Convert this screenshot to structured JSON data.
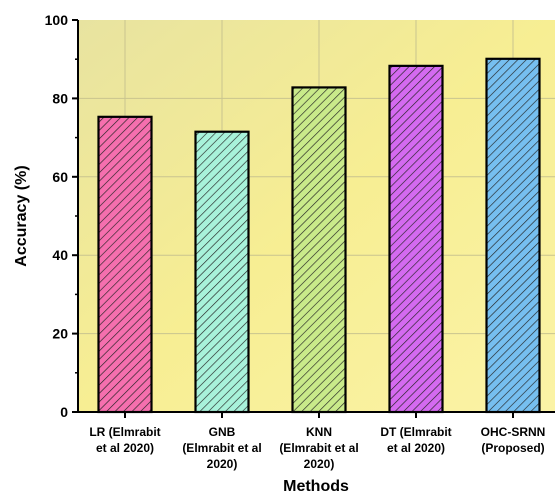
{
  "chart_data": {
    "type": "bar",
    "xlabel": "Methods",
    "ylabel": "Accuracy (%)",
    "ylim": [
      0,
      100
    ],
    "yticks": [
      0,
      20,
      40,
      60,
      80,
      100
    ],
    "grid": true,
    "categories": [
      [
        "LR (Elmrabit",
        "et al 2020)"
      ],
      [
        "GNB",
        "(Elmrabit et al",
        "2020)"
      ],
      [
        "KNN",
        "(Elmrabit et al",
        "2020)"
      ],
      [
        "DT (Elmrabit",
        "et al 2020)"
      ],
      [
        "OHC-SRNN",
        "(Proposed)"
      ]
    ],
    "values": [
      75.3,
      71.5,
      82.8,
      88.3,
      90.1
    ],
    "colors": [
      "#f56fae",
      "#a8f2da",
      "#c9ea8a",
      "#d46af0",
      "#76bff0"
    ],
    "background_color": "#f5ec9a"
  }
}
